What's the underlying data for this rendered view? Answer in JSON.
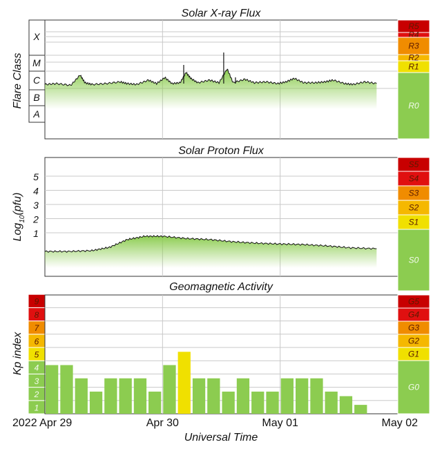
{
  "colors": {
    "green": "#8ccc50",
    "yellow": "#f0e000",
    "light_orange": "#f5b800",
    "orange": "#f08c00",
    "red_orange": "#f04010",
    "red": "#e01010",
    "dark_red": "#c80000",
    "grid": "#c8c8c8",
    "frame": "#333333"
  },
  "x_axis": {
    "label": "Universal Time",
    "start": "2022-04-29",
    "end": "2022-05-02",
    "ticks": [
      {
        "x": 0,
        "label": "2022 Apr 29"
      },
      {
        "x": 1,
        "label": "Apr 30"
      },
      {
        "x": 2,
        "label": "May 01"
      },
      {
        "x": 3,
        "label": "May 02"
      }
    ]
  },
  "chart_data": [
    {
      "id": "xray",
      "type": "area",
      "title": "Solar X-ray Flux",
      "ylabel": "Flare Class",
      "y_class_labels": [
        "A",
        "B",
        "C",
        "M",
        "X"
      ],
      "scale_labels": [
        "R5",
        "R4",
        "R3",
        "R2",
        "R1",
        "R0"
      ],
      "scale_colors": [
        "#c80000",
        "#e01010",
        "#f08c00",
        "#f5b800",
        "#f0e000",
        "#8ccc50"
      ],
      "x_unit": "days",
      "flux_log10": [
        [
          0.0,
          -6.1
        ],
        [
          0.1,
          -6.05
        ],
        [
          0.22,
          -6.15
        ],
        [
          0.3,
          -5.55
        ],
        [
          0.34,
          -6.0
        ],
        [
          0.4,
          -6.1
        ],
        [
          0.52,
          -6.05
        ],
        [
          0.64,
          -5.95
        ],
        [
          0.7,
          -6.05
        ],
        [
          0.78,
          -6.1
        ],
        [
          0.88,
          -5.85
        ],
        [
          0.95,
          -6.05
        ],
        [
          1.02,
          -5.7
        ],
        [
          1.08,
          -6.05
        ],
        [
          1.15,
          -6.0
        ],
        [
          1.2,
          -5.4
        ],
        [
          1.24,
          -5.75
        ],
        [
          1.3,
          -6.0
        ],
        [
          1.4,
          -5.85
        ],
        [
          1.48,
          -6.0
        ],
        [
          1.55,
          -5.2
        ],
        [
          1.6,
          -6.0
        ],
        [
          1.7,
          -5.8
        ],
        [
          1.78,
          -6.0
        ],
        [
          1.88,
          -5.95
        ],
        [
          1.98,
          -6.05
        ],
        [
          2.05,
          -5.95
        ],
        [
          2.12,
          -5.75
        ],
        [
          2.2,
          -6.0
        ],
        [
          2.3,
          -6.0
        ],
        [
          2.38,
          -5.95
        ],
        [
          2.45,
          -5.85
        ],
        [
          2.55,
          -6.05
        ],
        [
          2.62,
          -6.1
        ],
        [
          2.72,
          -5.95
        ],
        [
          2.82,
          -6.05
        ]
      ]
    },
    {
      "id": "proton",
      "type": "area",
      "title": "Solar Proton Flux",
      "ylabel": "Log10(pfu)",
      "ylabel_parts": [
        "Log",
        "10",
        "(pfu)"
      ],
      "y_ticks": [
        "1",
        "2",
        "3",
        "4",
        "5"
      ],
      "scale_labels": [
        "S5",
        "S4",
        "S3",
        "S2",
        "S1",
        "S0"
      ],
      "scale_colors": [
        "#c80000",
        "#e01010",
        "#f08c00",
        "#f5b800",
        "#f0e000",
        "#8ccc50"
      ],
      "x_unit": "days",
      "log10_pfu": [
        [
          0.0,
          -0.25
        ],
        [
          0.2,
          -0.25
        ],
        [
          0.4,
          -0.22
        ],
        [
          0.55,
          -0.1
        ],
        [
          0.7,
          0.18
        ],
        [
          0.85,
          0.3
        ],
        [
          1.0,
          0.3
        ],
        [
          1.2,
          0.22
        ],
        [
          1.4,
          0.18
        ],
        [
          1.6,
          0.1
        ],
        [
          1.8,
          0.05
        ],
        [
          2.0,
          0.02
        ],
        [
          2.2,
          0.0
        ],
        [
          2.4,
          -0.05
        ],
        [
          2.6,
          -0.12
        ],
        [
          2.82,
          -0.15
        ]
      ]
    },
    {
      "id": "kp",
      "type": "bar",
      "title": "Geomagnetic Activity",
      "ylabel": "Kp index",
      "y_ticks": [
        "1",
        "2",
        "3",
        "4",
        "5",
        "6",
        "7",
        "8",
        "9"
      ],
      "scale_labels": [
        "G5",
        "G4",
        "G3",
        "G2",
        "G1",
        "G0"
      ],
      "scale_colors": [
        "#c80000",
        "#e01010",
        "#f08c00",
        "#f5b800",
        "#f0e000",
        "#8ccc50"
      ],
      "interval_hours": 3,
      "values": [
        3.67,
        3.67,
        2.67,
        1.67,
        2.67,
        2.67,
        2.67,
        1.67,
        3.67,
        4.67,
        2.67,
        2.67,
        1.67,
        2.67,
        1.67,
        1.67,
        2.67,
        2.67,
        2.67,
        1.67,
        1.33,
        0.67
      ]
    }
  ]
}
